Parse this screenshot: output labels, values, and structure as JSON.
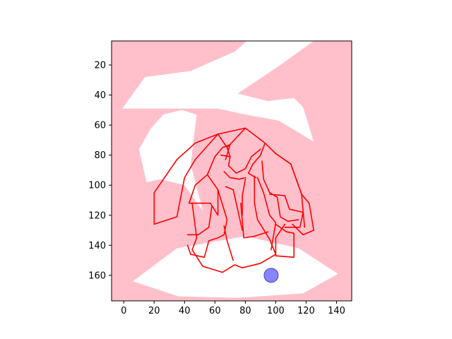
{
  "chart_data": {
    "type": "image",
    "title": "",
    "xlabel": "",
    "ylabel": "",
    "xlim": [
      -8,
      150
    ],
    "ylim": [
      177,
      4
    ],
    "y_inverted": true,
    "xticks": [
      0,
      20,
      40,
      60,
      80,
      100,
      120,
      140
    ],
    "xtick_labels": [
      "0",
      "20",
      "40",
      "60",
      "80",
      "100",
      "120",
      "140"
    ],
    "yticks": [
      20,
      40,
      60,
      80,
      100,
      120,
      140,
      160
    ],
    "ytick_labels": [
      "20",
      "40",
      "60",
      "80",
      "100",
      "120",
      "140",
      "160"
    ],
    "background_color": "#FFC0CB",
    "white_regions": [
      [
        [
          62,
          21
        ],
        [
          81,
          4
        ],
        [
          90,
          4
        ],
        [
          71,
          33
        ],
        [
          73,
          38
        ],
        [
          62,
          43
        ]
      ],
      [
        [
          89,
          4
        ],
        [
          125,
          4
        ],
        [
          103,
          20
        ],
        [
          75,
          39
        ],
        [
          95,
          44
        ],
        [
          112,
          42
        ],
        [
          118,
          48
        ],
        [
          125,
          71
        ],
        [
          120,
          68
        ],
        [
          102,
          57
        ],
        [
          80,
          53
        ],
        [
          62,
          49
        ],
        [
          -1,
          49
        ],
        [
          14,
          28
        ],
        [
          44,
          24
        ]
      ],
      [
        [
          26,
          53
        ],
        [
          38,
          50
        ],
        [
          48,
          53
        ],
        [
          44,
          86
        ],
        [
          52,
          117
        ],
        [
          40,
          100
        ],
        [
          24,
          96
        ],
        [
          15,
          98
        ],
        [
          10,
          76
        ],
        [
          18,
          62
        ]
      ],
      [
        [
          6,
          164
        ],
        [
          35,
          142
        ],
        [
          80,
          134
        ],
        [
          115,
          142
        ],
        [
          141,
          159
        ],
        [
          118,
          172
        ],
        [
          75,
          175
        ],
        [
          36,
          174
        ]
      ]
    ],
    "red_outline_segments": [
      [
        [
          62,
          66
        ],
        [
          80,
          62
        ],
        [
          93,
          72
        ],
        [
          100,
          79
        ],
        [
          110,
          86
        ],
        [
          117,
          106
        ],
        [
          119,
          128
        ]
      ],
      [
        [
          62,
          66
        ],
        [
          47,
          72
        ],
        [
          35,
          83
        ],
        [
          20,
          105
        ],
        [
          20,
          126
        ],
        [
          35,
          121
        ],
        [
          40,
          95
        ],
        [
          47,
          83
        ],
        [
          62,
          66
        ]
      ],
      [
        [
          55,
          93
        ],
        [
          62,
          103
        ],
        [
          62,
          120
        ],
        [
          57,
          112
        ],
        [
          43,
          112
        ],
        [
          47,
          100
        ],
        [
          55,
          93
        ]
      ],
      [
        [
          55,
          93
        ],
        [
          60,
          81
        ],
        [
          65,
          75
        ],
        [
          70,
          73
        ],
        [
          67,
          83
        ]
      ],
      [
        [
          64,
          80
        ],
        [
          70,
          81
        ],
        [
          69,
          87
        ],
        [
          74,
          92
        ],
        [
          80,
          89
        ],
        [
          84,
          81
        ],
        [
          90,
          76
        ]
      ],
      [
        [
          93,
          72
        ],
        [
          90,
          80
        ],
        [
          85,
          86
        ],
        [
          82,
          92
        ],
        [
          87,
          95
        ]
      ],
      [
        [
          62,
          66
        ],
        [
          68,
          75
        ],
        [
          70,
          81
        ]
      ],
      [
        [
          66,
          91
        ],
        [
          70,
          95
        ],
        [
          76,
          96
        ],
        [
          80,
          95
        ]
      ],
      [
        [
          67,
          101
        ],
        [
          72,
          103
        ],
        [
          74,
          112
        ],
        [
          78,
          130
        ]
      ],
      [
        [
          88,
          95
        ],
        [
          92,
          105
        ],
        [
          96,
          120
        ],
        [
          100,
          125
        ],
        [
          97,
          143
        ]
      ],
      [
        [
          80,
          96
        ],
        [
          78,
          107
        ],
        [
          78,
          120
        ]
      ],
      [
        [
          62,
          103
        ],
        [
          68,
          123
        ],
        [
          66,
          133
        ],
        [
          62,
          135
        ]
      ],
      [
        [
          80,
          62
        ],
        [
          68,
          75
        ]
      ],
      [
        [
          91,
          84
        ],
        [
          92,
          96
        ],
        [
          96,
          105
        ],
        [
          101,
          108
        ],
        [
          103,
          121
        ],
        [
          108,
          124
        ],
        [
          115,
          123
        ]
      ],
      [
        [
          96,
          106
        ],
        [
          106,
          107
        ],
        [
          109,
          116
        ],
        [
          118,
          118
        ],
        [
          116,
          128
        ],
        [
          106,
          128
        ]
      ],
      [
        [
          100,
          79
        ],
        [
          110,
          86
        ],
        [
          117,
          106
        ],
        [
          122,
          112
        ],
        [
          125,
          130
        ],
        [
          118,
          133
        ],
        [
          111,
          126
        ]
      ],
      [
        [
          86,
          94
        ],
        [
          86,
          112
        ],
        [
          88,
          123
        ],
        [
          96,
          136
        ],
        [
          100,
          146
        ],
        [
          90,
          152
        ],
        [
          78,
          155
        ]
      ],
      [
        [
          45,
          112
        ],
        [
          48,
          135
        ],
        [
          45,
          143
        ],
        [
          52,
          154
        ],
        [
          65,
          158
        ],
        [
          73,
          153
        ],
        [
          78,
          155
        ]
      ],
      [
        [
          42,
          140
        ],
        [
          44,
          146
        ],
        [
          53,
          148
        ],
        [
          56,
          137
        ],
        [
          62,
          135
        ]
      ],
      [
        [
          58,
          114
        ],
        [
          56,
          128
        ],
        [
          49,
          133
        ],
        [
          42,
          133
        ]
      ],
      [
        [
          66,
          127
        ],
        [
          68,
          137
        ],
        [
          72,
          150
        ]
      ],
      [
        [
          77,
          112
        ],
        [
          79,
          135
        ],
        [
          86,
          134
        ],
        [
          95,
          131
        ]
      ],
      [
        [
          100,
          126
        ],
        [
          107,
          131
        ],
        [
          112,
          132
        ],
        [
          112,
          148
        ],
        [
          100,
          147
        ],
        [
          100,
          135
        ],
        [
          106,
          126
        ]
      ]
    ],
    "marker": {
      "x": 97,
      "y": 160,
      "color": "#6666FF"
    }
  }
}
